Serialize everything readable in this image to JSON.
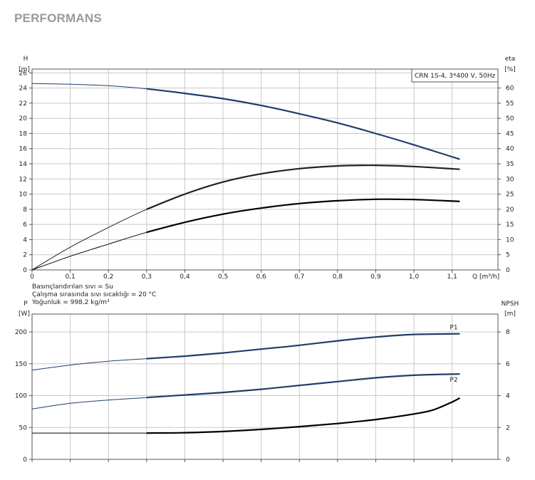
{
  "page_title": "PERFORMANS",
  "chart_data": [
    {
      "type": "line",
      "legend_box": "CRN 1S-4, 3*400 V, 50Hz",
      "xlabel": "Q [m³/h]",
      "ylabel_left": [
        "H",
        "[m]"
      ],
      "ylabel_right": [
        "eta",
        "[%]"
      ],
      "xlim": [
        0,
        1.22
      ],
      "ylim_left": [
        0,
        26.5
      ],
      "ylim_right": [
        0,
        66.25
      ],
      "xticks": [
        "0",
        "0,1",
        "0,2",
        "0,3",
        "0,4",
        "0,5",
        "0,6",
        "0,7",
        "0,8",
        "0,9",
        "1,0",
        "1,1"
      ],
      "yticks_left": [
        "0",
        "2",
        "4",
        "6",
        "8",
        "10",
        "12",
        "14",
        "16",
        "18",
        "20",
        "22",
        "24",
        "26"
      ],
      "yticks_right": [
        "0",
        "5",
        "10",
        "15",
        "20",
        "25",
        "30",
        "35",
        "40",
        "45",
        "50",
        "55",
        "60"
      ],
      "grid": true,
      "notes": [
        "Basınçlandırılan sıvı = Su",
        "Çalışma sırasında sıvı sıcaklığı = 20 °C",
        "Yoğunluk = 998.2 kg/m³"
      ],
      "series": [
        {
          "axis": "left",
          "color": "#1f3e6b",
          "x": [
            0,
            0.1,
            0.2,
            0.3,
            0.4,
            0.5,
            0.6,
            0.7,
            0.8,
            0.9,
            1.0,
            1.12
          ],
          "y": [
            24.6,
            24.5,
            24.3,
            23.9,
            23.3,
            22.6,
            21.7,
            20.6,
            19.4,
            18.0,
            16.5,
            14.6
          ]
        },
        {
          "axis": "right",
          "color": "#222222",
          "x": [
            0,
            0.1,
            0.2,
            0.3,
            0.4,
            0.5,
            0.6,
            0.7,
            0.8,
            0.9,
            1.0,
            1.12
          ],
          "y": [
            0,
            7.5,
            14.0,
            20.0,
            25.0,
            29.0,
            31.7,
            33.4,
            34.3,
            34.5,
            34.1,
            33.2
          ]
        },
        {
          "axis": "right",
          "color": "#000000",
          "x": [
            0,
            0.1,
            0.2,
            0.3,
            0.4,
            0.5,
            0.6,
            0.7,
            0.8,
            0.9,
            1.0,
            1.12
          ],
          "y": [
            0,
            4.5,
            8.5,
            12.4,
            15.7,
            18.4,
            20.4,
            21.9,
            22.8,
            23.3,
            23.2,
            22.6
          ]
        }
      ]
    },
    {
      "type": "line",
      "xlabel": "",
      "ylabel_left": [
        "P",
        "[W]"
      ],
      "ylabel_right": [
        "NPSH",
        "[m]"
      ],
      "xlim": [
        0,
        1.22
      ],
      "ylim_left": [
        0,
        228
      ],
      "ylim_right": [
        0,
        9.12
      ],
      "yticks_left": [
        "0",
        "50",
        "100",
        "150",
        "200"
      ],
      "yticks_right": [
        "0",
        "2",
        "4",
        "6",
        "8"
      ],
      "grid": true,
      "series": [
        {
          "name": "P1",
          "axis": "left",
          "color": "#1f3e6b",
          "x": [
            0,
            0.1,
            0.2,
            0.3,
            0.4,
            0.5,
            0.6,
            0.7,
            0.8,
            0.9,
            1.0,
            1.12
          ],
          "y": [
            140,
            148,
            154,
            158,
            162,
            167,
            173,
            179,
            186,
            192,
            196,
            197
          ]
        },
        {
          "name": "P2",
          "axis": "left",
          "color": "#1f3e6b",
          "x": [
            0,
            0.1,
            0.2,
            0.3,
            0.4,
            0.5,
            0.6,
            0.7,
            0.8,
            0.9,
            1.0,
            1.12
          ],
          "y": [
            79,
            88,
            93,
            97,
            101,
            105,
            110,
            116,
            122,
            128,
            132,
            134
          ]
        },
        {
          "axis": "right",
          "color": "#000000",
          "x": [
            0,
            0.1,
            0.2,
            0.3,
            0.4,
            0.5,
            0.6,
            0.7,
            0.8,
            0.9,
            1.0,
            1.05,
            1.1,
            1.12
          ],
          "y": [
            1.65,
            1.65,
            1.65,
            1.65,
            1.67,
            1.75,
            1.88,
            2.05,
            2.25,
            2.5,
            2.85,
            3.1,
            3.6,
            3.85
          ]
        }
      ]
    }
  ]
}
